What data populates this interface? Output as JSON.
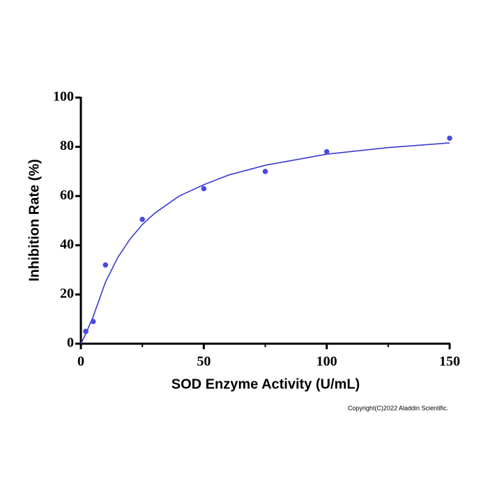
{
  "chart_data": {
    "type": "scatter",
    "xlabel": "SOD Enzyme Activity (U/mL)",
    "ylabel": "Inhibition Rate (%)",
    "xlim": [
      0,
      150
    ],
    "ylim": [
      0,
      100
    ],
    "xticks": [
      0,
      50,
      100,
      150
    ],
    "xminorticks": [
      25,
      75,
      125
    ],
    "yticks": [
      0,
      20,
      40,
      60,
      80,
      100
    ],
    "points": {
      "x": [
        2,
        5,
        10,
        25,
        50,
        75,
        100,
        150
      ],
      "y": [
        5,
        9,
        32,
        50.5,
        63,
        70,
        78,
        83.5
      ],
      "color": "#4a4ae0"
    },
    "fit": {
      "x": [
        0,
        2,
        5,
        10,
        15,
        20,
        25,
        30,
        40,
        50,
        60,
        75,
        100,
        125,
        150
      ],
      "y": [
        0,
        4,
        11,
        25,
        35,
        42.5,
        48.4,
        53,
        60,
        64.6,
        68.5,
        72.5,
        77,
        79.7,
        81.6
      ],
      "color": "#3a3ad0"
    },
    "annotation": "Copyright(C)2022 Aladdin Scientific."
  }
}
